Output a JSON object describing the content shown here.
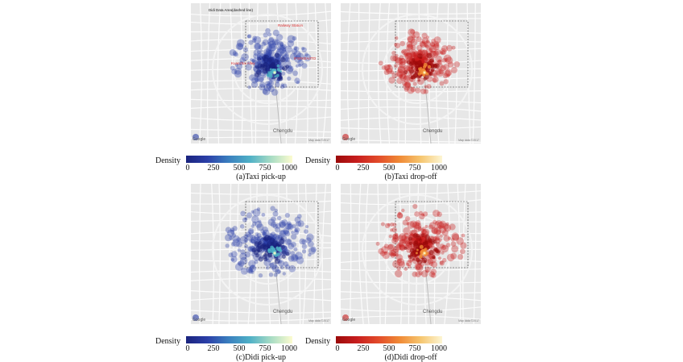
{
  "panels": [
    {
      "id": "a",
      "caption": "(a)Taxi pick-up",
      "colors": [
        "#1a237e",
        "#2b3fa8",
        "#3a7fbf",
        "#4fb0c6",
        "#a8dcc4",
        "#fdfccf"
      ],
      "map_label": "Chengdu",
      "annotations": {
        "didi_area": "Didi Data Area(dashed line)",
        "railway": "Railway Station",
        "kuanzhai": "Kuanzhai Alley",
        "ifs": "IFS/IKEA/ITO"
      }
    },
    {
      "id": "b",
      "caption": "(b)Taxi drop-off",
      "colors": [
        "#9b0a0a",
        "#c81e1e",
        "#e24b2a",
        "#f08a36",
        "#f6c670",
        "#fdf6d3"
      ],
      "map_label": "Chengdu"
    },
    {
      "id": "c",
      "caption": "(c)Didi pick-up",
      "colors": [
        "#1a237e",
        "#2b3fa8",
        "#3a7fbf",
        "#4fb0c6",
        "#a8dcc4",
        "#fdfccf"
      ],
      "map_label": "Chengdu"
    },
    {
      "id": "d",
      "caption": "(d)Didi drop-off",
      "colors": [
        "#9b0a0a",
        "#c81e1e",
        "#e24b2a",
        "#f08a36",
        "#f6c670",
        "#fdf6d3"
      ],
      "map_label": "Chengdu"
    }
  ],
  "colorbar": {
    "label": "Density",
    "ticks": [
      0,
      250,
      500,
      750,
      1000
    ]
  },
  "map_logo": "Google",
  "map_credit": "Map data ©2017"
}
